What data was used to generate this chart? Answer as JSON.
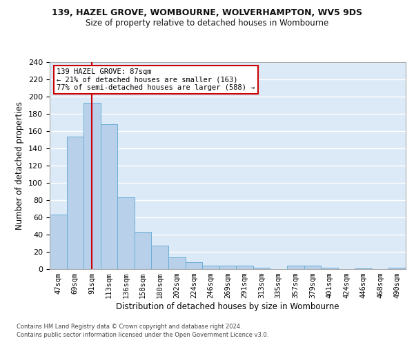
{
  "title1": "139, HAZEL GROVE, WOMBOURNE, WOLVERHAMPTON, WV5 9DS",
  "title2": "Size of property relative to detached houses in Wombourne",
  "xlabel": "Distribution of detached houses by size in Wombourne",
  "ylabel": "Number of detached properties",
  "categories": [
    "47sqm",
    "69sqm",
    "91sqm",
    "113sqm",
    "136sqm",
    "158sqm",
    "180sqm",
    "202sqm",
    "224sqm",
    "246sqm",
    "269sqm",
    "291sqm",
    "313sqm",
    "335sqm",
    "357sqm",
    "379sqm",
    "401sqm",
    "424sqm",
    "446sqm",
    "468sqm",
    "490sqm"
  ],
  "values": [
    63,
    154,
    193,
    168,
    83,
    43,
    27,
    14,
    8,
    4,
    4,
    4,
    2,
    0,
    4,
    4,
    2,
    0,
    1,
    0,
    2
  ],
  "bar_color": "#b8d0ea",
  "bar_edge_color": "#6aaed6",
  "background_color": "#dce9f7",
  "grid_color": "#ffffff",
  "vline_x": 2,
  "vline_color": "#cc0000",
  "annotation_text": "139 HAZEL GROVE: 87sqm\n← 21% of detached houses are smaller (163)\n77% of semi-detached houses are larger (588) →",
  "annotation_box_facecolor": "#ffffff",
  "annotation_box_edgecolor": "#cc0000",
  "ylim": [
    0,
    240
  ],
  "yticks": [
    0,
    20,
    40,
    60,
    80,
    100,
    120,
    140,
    160,
    180,
    200,
    220,
    240
  ],
  "footer1": "Contains HM Land Registry data © Crown copyright and database right 2024.",
  "footer2": "Contains public sector information licensed under the Open Government Licence v3.0.",
  "fig_facecolor": "#ffffff"
}
